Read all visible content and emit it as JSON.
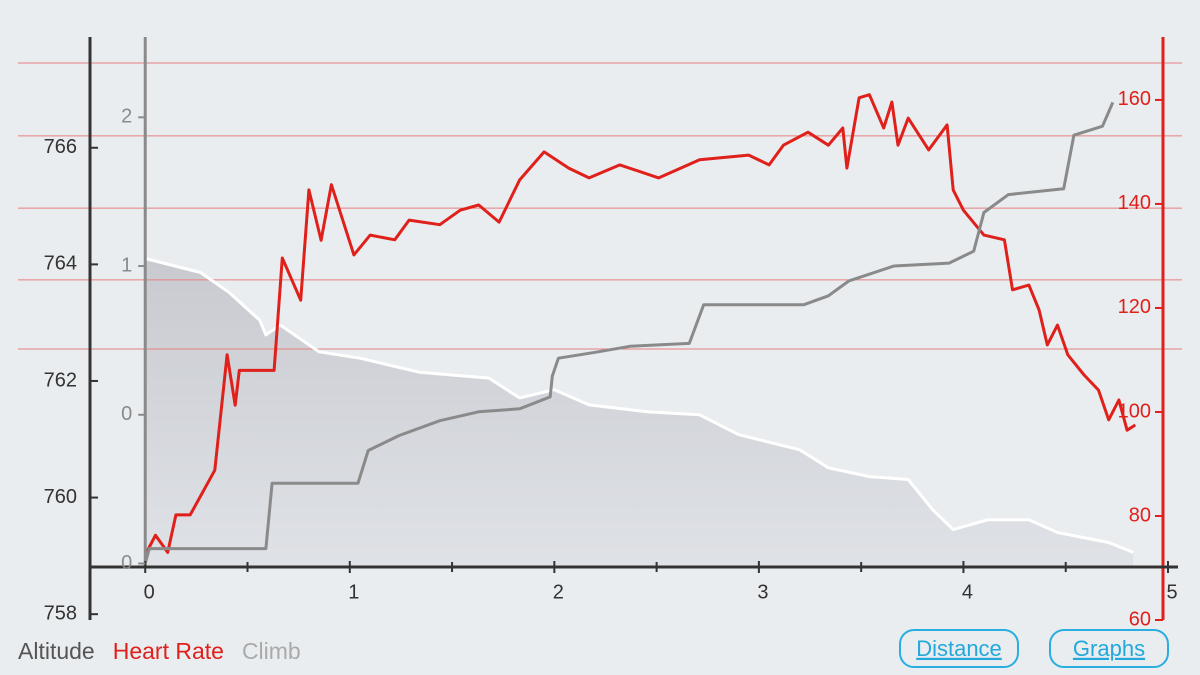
{
  "chart_data": {
    "type": "line",
    "xlim": [
      -0.27,
      5
    ],
    "xticks": [
      0,
      1,
      2,
      3,
      4,
      5
    ],
    "xminorticks": [
      0.5,
      1.5,
      2.5,
      3.5,
      4.5
    ],
    "ylim": [
      757.9,
      767.9
    ],
    "yticks": [
      758,
      760,
      762,
      764,
      766
    ],
    "y2lim": [
      60,
      172.1
    ],
    "y2ticks": [
      60,
      80,
      100,
      120,
      140,
      160
    ],
    "y3lim": [
      -0.19,
      1.77
    ],
    "y3ticks": [
      0,
      {
        "value": 0.5,
        "label": "0"
      },
      1,
      {
        "value": 1.5,
        "label": "2"
      }
    ],
    "hr_zone_lines": [
      167.1,
      153.1,
      139.2,
      125.4,
      112.1
    ],
    "series": [
      {
        "name": "Altitude",
        "color": "#ffffff",
        "fill": "#c8cad0",
        "axis": "y",
        "x": [
          0,
          0.27,
          0.41,
          0.56,
          0.59,
          0.66,
          0.85,
          1.05,
          1.34,
          1.68,
          1.83,
          2.0,
          2.17,
          2.46,
          2.71,
          2.9,
          3.2,
          3.34,
          3.54,
          3.73,
          3.85,
          3.95,
          4.12,
          4.32,
          4.46,
          4.71,
          4.83
        ],
        "values": [
          764.1,
          763.86,
          763.52,
          763.04,
          762.79,
          762.96,
          762.5,
          762.39,
          762.15,
          762.05,
          761.71,
          761.85,
          761.59,
          761.47,
          761.42,
          761.08,
          760.82,
          760.51,
          760.36,
          760.31,
          759.79,
          759.45,
          759.62,
          759.62,
          759.4,
          759.23,
          759.06
        ]
      },
      {
        "name": "Heart Rate",
        "color": "#e0201b",
        "axis": "y2",
        "x": [
          0,
          0.05,
          0.11,
          0.15,
          0.22,
          0.34,
          0.4,
          0.44,
          0.46,
          0.63,
          0.67,
          0.76,
          0.8,
          0.86,
          0.91,
          1.02,
          1.1,
          1.22,
          1.29,
          1.44,
          1.54,
          1.63,
          1.73,
          1.83,
          1.95,
          2.07,
          2.17,
          2.32,
          2.51,
          2.71,
          2.95,
          3.05,
          3.12,
          3.24,
          3.34,
          3.41,
          3.43,
          3.49,
          3.54,
          3.61,
          3.65,
          3.68,
          3.73,
          3.83,
          3.92,
          3.95,
          4.0,
          4.1,
          4.2,
          4.24,
          4.32,
          4.37,
          4.41,
          4.46,
          4.51,
          4.59,
          4.66,
          4.71,
          4.76,
          4.8,
          4.84
        ],
        "values": [
          72.5,
          76.3,
          73,
          80.2,
          80.2,
          88.8,
          111,
          101.3,
          108,
          108,
          129.6,
          121.5,
          142.7,
          133,
          143.7,
          130.2,
          134,
          133.1,
          136.9,
          136,
          138.8,
          139.8,
          136.5,
          144.6,
          150,
          146.9,
          145,
          147.5,
          145,
          148.5,
          149.4,
          147.5,
          151.3,
          153.8,
          151.3,
          154.6,
          146.9,
          160.4,
          161,
          154.6,
          159.6,
          151.3,
          156.5,
          150.4,
          155.2,
          142.7,
          138.8,
          134,
          133.1,
          123.5,
          124.4,
          119.6,
          112.9,
          116.7,
          111,
          107.1,
          104.2,
          98.5,
          102.3,
          96.5,
          97.5
        ]
      },
      {
        "name": "Climb",
        "color": "#8a8a8a",
        "axis": "y3",
        "x": [
          0,
          0.02,
          0.59,
          0.62,
          1.04,
          1.09,
          1.24,
          1.44,
          1.63,
          1.83,
          1.98,
          1.99,
          2.02,
          2.2,
          2.37,
          2.66,
          2.73,
          3.22,
          3.34,
          3.44,
          3.66,
          3.93,
          4.05,
          4.1,
          4.22,
          4.49,
          4.54,
          4.68,
          4.73
        ],
        "values": [
          0,
          0.05,
          0.05,
          0.27,
          0.27,
          0.38,
          0.43,
          0.48,
          0.51,
          0.52,
          0.56,
          0.63,
          0.69,
          0.71,
          0.73,
          0.74,
          0.87,
          0.87,
          0.9,
          0.95,
          1.0,
          1.01,
          1.05,
          1.18,
          1.24,
          1.26,
          1.44,
          1.47,
          1.55
        ]
      }
    ],
    "legend_colors": [
      "#555555",
      "#e0201b",
      "#aaaaaa"
    ]
  },
  "buttons": [
    "Distance",
    "Graphs"
  ]
}
